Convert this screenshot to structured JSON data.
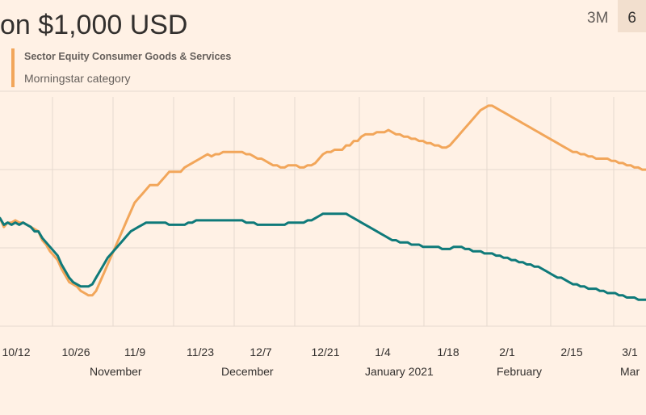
{
  "title": "on $1,000 USD",
  "range_tabs": [
    {
      "label": "3M",
      "active": false
    },
    {
      "label": "6",
      "active": true
    }
  ],
  "legend": {
    "fund_label": "Sector Equity Consumer Goods & Services",
    "category_label": "Morningstar category"
  },
  "colors": {
    "background": "#fff1e5",
    "series_category": "#f2a65a",
    "series_fund": "#0f7a7a",
    "grid": "#e6d9ce",
    "text": "#33302e"
  },
  "chart_data": {
    "type": "line",
    "title": "on $1,000 USD",
    "xlabel": "",
    "ylabel": "",
    "x_ticks": [
      "10/12",
      "10/26",
      "11/9",
      "11/23",
      "12/7",
      "12/21",
      "1/4",
      "1/18",
      "2/1",
      "2/15",
      "3/1"
    ],
    "month_labels": [
      "November",
      "December",
      "January 2021",
      "February",
      "Mar"
    ],
    "x_range": [
      "2020-10-08",
      "2021-03-10"
    ],
    "ylim": [
      -2,
      102
    ],
    "series": [
      {
        "name": "Morningstar category",
        "color": "#f2a65a",
        "values": [
          47,
          43,
          45,
          45,
          46,
          45,
          45,
          44,
          43,
          42,
          41,
          37,
          35,
          32,
          30,
          28,
          24,
          21,
          18,
          17,
          16,
          14,
          13,
          12,
          12,
          14,
          18,
          22,
          26,
          30,
          34,
          38,
          42,
          46,
          50,
          54,
          56,
          58,
          60,
          62,
          62,
          62,
          64,
          66,
          68,
          68,
          68,
          68,
          70,
          71,
          72,
          73,
          74,
          75,
          76,
          75,
          76,
          76,
          77,
          77,
          77,
          77,
          77,
          77,
          76,
          76,
          75,
          74,
          74,
          73,
          72,
          71,
          71,
          70,
          70,
          71,
          71,
          71,
          70,
          70,
          71,
          71,
          72,
          74,
          76,
          77,
          77,
          78,
          78,
          78,
          80,
          80,
          82,
          82,
          84,
          85,
          85,
          85,
          86,
          86,
          86,
          87,
          86,
          85,
          85,
          84,
          84,
          83,
          83,
          82,
          82,
          81,
          81,
          80,
          80,
          79,
          79,
          80,
          82,
          84,
          86,
          88,
          90,
          92,
          94,
          96,
          97,
          98,
          98,
          97,
          96,
          95,
          94,
          93,
          92,
          91,
          90,
          89,
          88,
          87,
          86,
          85,
          84,
          83,
          82,
          81,
          80,
          79,
          78,
          77,
          77,
          76,
          76,
          75,
          75,
          74,
          74,
          74,
          74,
          73,
          73,
          72,
          72,
          71,
          71,
          70,
          70,
          69,
          69
        ]
      },
      {
        "name": "Sector Equity Consumer Goods & Services",
        "color": "#0f7a7a",
        "values": [
          47,
          44,
          45,
          44,
          45,
          44,
          45,
          44,
          43,
          41,
          41,
          38,
          36,
          34,
          32,
          30,
          26,
          23,
          20,
          18,
          17,
          16,
          16,
          16,
          17,
          20,
          23,
          26,
          29,
          31,
          33,
          35,
          37,
          39,
          41,
          42,
          43,
          44,
          45,
          45,
          45,
          45,
          45,
          45,
          44,
          44,
          44,
          44,
          44,
          45,
          45,
          46,
          46,
          46,
          46,
          46,
          46,
          46,
          46,
          46,
          46,
          46,
          46,
          46,
          45,
          45,
          45,
          44,
          44,
          44,
          44,
          44,
          44,
          44,
          44,
          45,
          45,
          45,
          45,
          45,
          46,
          46,
          47,
          48,
          49,
          49,
          49,
          49,
          49,
          49,
          49,
          48,
          47,
          46,
          45,
          44,
          43,
          42,
          41,
          40,
          39,
          38,
          37,
          37,
          36,
          36,
          36,
          35,
          35,
          35,
          34,
          34,
          34,
          34,
          34,
          33,
          33,
          33,
          34,
          34,
          34,
          33,
          33,
          32,
          32,
          32,
          31,
          31,
          31,
          30,
          30,
          29,
          29,
          28,
          28,
          27,
          27,
          26,
          26,
          25,
          25,
          24,
          23,
          22,
          21,
          20,
          20,
          19,
          18,
          17,
          17,
          16,
          16,
          15,
          15,
          15,
          14,
          14,
          13,
          13,
          13,
          12,
          12,
          11,
          11,
          11,
          10,
          10,
          10
        ]
      }
    ]
  }
}
